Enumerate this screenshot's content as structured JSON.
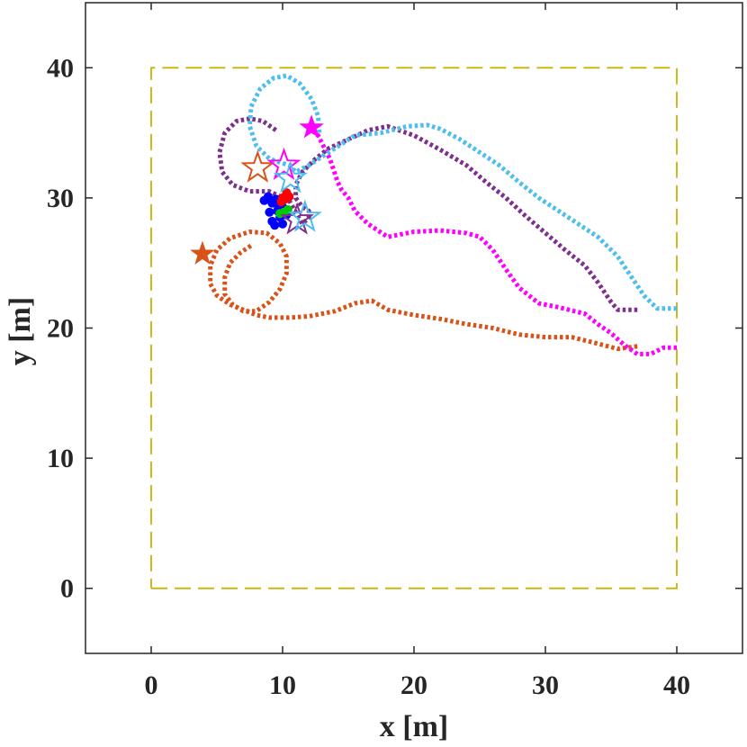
{
  "chart_data": {
    "type": "line",
    "title": "",
    "xlabel": "x [m]",
    "ylabel": "y [m]",
    "xlim": [
      -5,
      45
    ],
    "ylim": [
      -5,
      45
    ],
    "xticks": [
      0,
      10,
      20,
      30,
      40
    ],
    "yticks": [
      0,
      10,
      20,
      30,
      40
    ],
    "xtick_labels": [
      "0",
      "10",
      "20",
      "30",
      "40"
    ],
    "ytick_labels": [
      "0",
      "10",
      "20",
      "30",
      "40"
    ],
    "grid": false,
    "boundary": {
      "name": "arena boundary",
      "color": "#C8B400",
      "x": [
        0,
        40,
        40,
        0,
        0
      ],
      "y": [
        0,
        0,
        40,
        40,
        0
      ]
    },
    "series": [
      {
        "name": "orange trajectory",
        "color": "#D95319",
        "x": [
          37.0,
          35.5,
          34.0,
          32.0,
          30.0,
          28.0,
          26.0,
          24.0,
          22.0,
          20.0,
          18.0,
          16.8,
          15.5,
          14.0,
          13.0,
          12.0,
          10.5,
          9.0,
          8.0,
          7.0,
          6.0,
          5.0,
          4.5,
          4.5,
          5.0,
          6.0,
          7.5,
          8.8,
          9.8,
          10.3,
          10.3,
          9.8,
          9.0,
          8.0,
          7.0,
          6.2,
          5.6,
          5.6,
          6.0,
          6.8,
          7.7
        ],
        "y": [
          18.6,
          18.4,
          18.8,
          19.3,
          19.3,
          19.5,
          20.0,
          20.3,
          20.7,
          21.0,
          21.4,
          22.1,
          21.9,
          21.3,
          21.1,
          20.9,
          20.8,
          20.8,
          21.0,
          21.4,
          21.8,
          22.5,
          23.4,
          24.8,
          26.0,
          26.9,
          27.4,
          27.3,
          26.5,
          25.5,
          24.2,
          23.0,
          22.0,
          21.3,
          21.3,
          21.8,
          22.6,
          23.9,
          25.0,
          25.8,
          26.4
        ]
      },
      {
        "name": "magenta trajectory",
        "color": "#FF00FF",
        "x": [
          40.0,
          39.0,
          38.0,
          37.0,
          36.0,
          35.0,
          34.0,
          33.0,
          31.0,
          29.5,
          28.0,
          27.0,
          26.0,
          25.0,
          24.0,
          23.0,
          22.0,
          20.0,
          18.0,
          16.5,
          15.5,
          15.0,
          14.5,
          14.2,
          14.0,
          13.8,
          13.6,
          13.3,
          13.0,
          12.7,
          12.2
        ],
        "y": [
          18.5,
          18.5,
          18.0,
          18.0,
          18.7,
          19.6,
          20.3,
          21.1,
          21.6,
          21.9,
          23.1,
          24.5,
          26.0,
          27.0,
          27.3,
          27.4,
          27.5,
          27.4,
          27.0,
          28.0,
          29.0,
          30.0,
          30.6,
          31.2,
          31.8,
          32.4,
          33.0,
          33.6,
          34.2,
          34.8,
          35.2
        ]
      },
      {
        "name": "purple trajectory",
        "color": "#7E2F8E",
        "x": [
          37.0,
          35.5,
          35.0,
          34.0,
          33.0,
          31.5,
          30.0,
          28.5,
          27.0,
          25.5,
          24.0,
          22.0,
          20.0,
          18.0,
          16.5,
          15.0,
          13.5,
          12.5,
          11.5,
          11.0,
          11.0,
          11.5,
          12.0,
          12.0,
          11.5,
          10.5,
          9.0,
          7.5,
          6.2,
          5.4,
          5.2,
          5.6,
          6.5,
          7.5,
          8.5,
          9.5
        ],
        "y": [
          21.4,
          21.4,
          22.0,
          23.5,
          24.8,
          26.0,
          27.3,
          28.6,
          30.0,
          31.2,
          32.5,
          33.7,
          34.8,
          35.5,
          35.2,
          34.5,
          33.8,
          33.0,
          32.0,
          31.0,
          30.0,
          29.3,
          29.0,
          28.5,
          28.0,
          29.8,
          30.5,
          30.5,
          31.0,
          32.0,
          33.5,
          35.0,
          35.9,
          36.1,
          35.9,
          35.2
        ]
      },
      {
        "name": "cyan trajectory",
        "color": "#4DBEEE",
        "x": [
          40.0,
          38.5,
          37.5,
          36.5,
          35.5,
          34.0,
          32.5,
          31.0,
          29.5,
          28.0,
          26.5,
          25.0,
          23.5,
          22.0,
          21.0,
          19.5,
          17.5,
          15.5,
          13.5,
          12.0,
          11.0,
          10.5,
          9.0,
          8.0,
          7.5,
          7.6,
          8.3,
          9.3,
          10.3,
          11.3,
          12.2,
          12.7,
          12.8
        ],
        "y": [
          21.5,
          21.5,
          22.5,
          24.0,
          25.5,
          27.0,
          28.0,
          29.0,
          30.0,
          31.2,
          32.5,
          33.5,
          34.5,
          35.3,
          35.6,
          35.5,
          35.0,
          34.8,
          33.5,
          32.5,
          32.0,
          32.5,
          33.0,
          34.0,
          35.5,
          37.0,
          38.4,
          39.2,
          39.4,
          38.8,
          37.6,
          36.3,
          35.0
        ]
      }
    ],
    "start_markers": [
      {
        "series": "orange trajectory",
        "x": 3.9,
        "y": 25.7,
        "marker": "filled star",
        "color": "#D95319"
      },
      {
        "series": "magenta trajectory",
        "x": 12.2,
        "y": 35.4,
        "marker": "filled star",
        "color": "#FF00FF"
      }
    ],
    "end_markers": [
      {
        "series": "orange trajectory",
        "x": 8.1,
        "y": 32.3,
        "marker": "open star",
        "color": "#D95319"
      },
      {
        "series": "magenta trajectory",
        "x": 10.1,
        "y": 32.5,
        "marker": "open star",
        "color": "#FF00FF"
      },
      {
        "series": "cyan trajectory",
        "x": 10.6,
        "y": 31.5,
        "marker": "open star",
        "color": "#4DBEEE"
      },
      {
        "series": "purple trajectory",
        "x": 11.1,
        "y": 28.3,
        "marker": "open star",
        "color": "#7E2F8E"
      },
      {
        "series": "cyan trajectory",
        "x": 11.7,
        "y": 28.5,
        "marker": "open star",
        "color": "#4DBEEE"
      }
    ],
    "cluster_points": [
      {
        "name": "blue cluster",
        "color": "#0000FF",
        "x": [
          8.6,
          8.9,
          9.2,
          9.5,
          9.0,
          9.6,
          10.0,
          9.2,
          9.8,
          10.3,
          9.4,
          10.0,
          9.6
        ],
        "y": [
          29.8,
          30.1,
          29.6,
          29.9,
          28.9,
          29.0,
          29.3,
          28.2,
          28.5,
          28.7,
          27.9,
          28.0,
          29.5
        ]
      },
      {
        "name": "red cluster",
        "color": "#FF0000",
        "x": [
          9.9,
          10.2,
          10.5,
          10.3,
          10.0
        ],
        "y": [
          29.7,
          29.9,
          30.1,
          30.4,
          30.0
        ]
      },
      {
        "name": "green cluster",
        "color": "#00C800",
        "x": [
          9.8,
          10.1,
          10.4
        ],
        "y": [
          28.8,
          28.9,
          29.1
        ]
      }
    ]
  }
}
